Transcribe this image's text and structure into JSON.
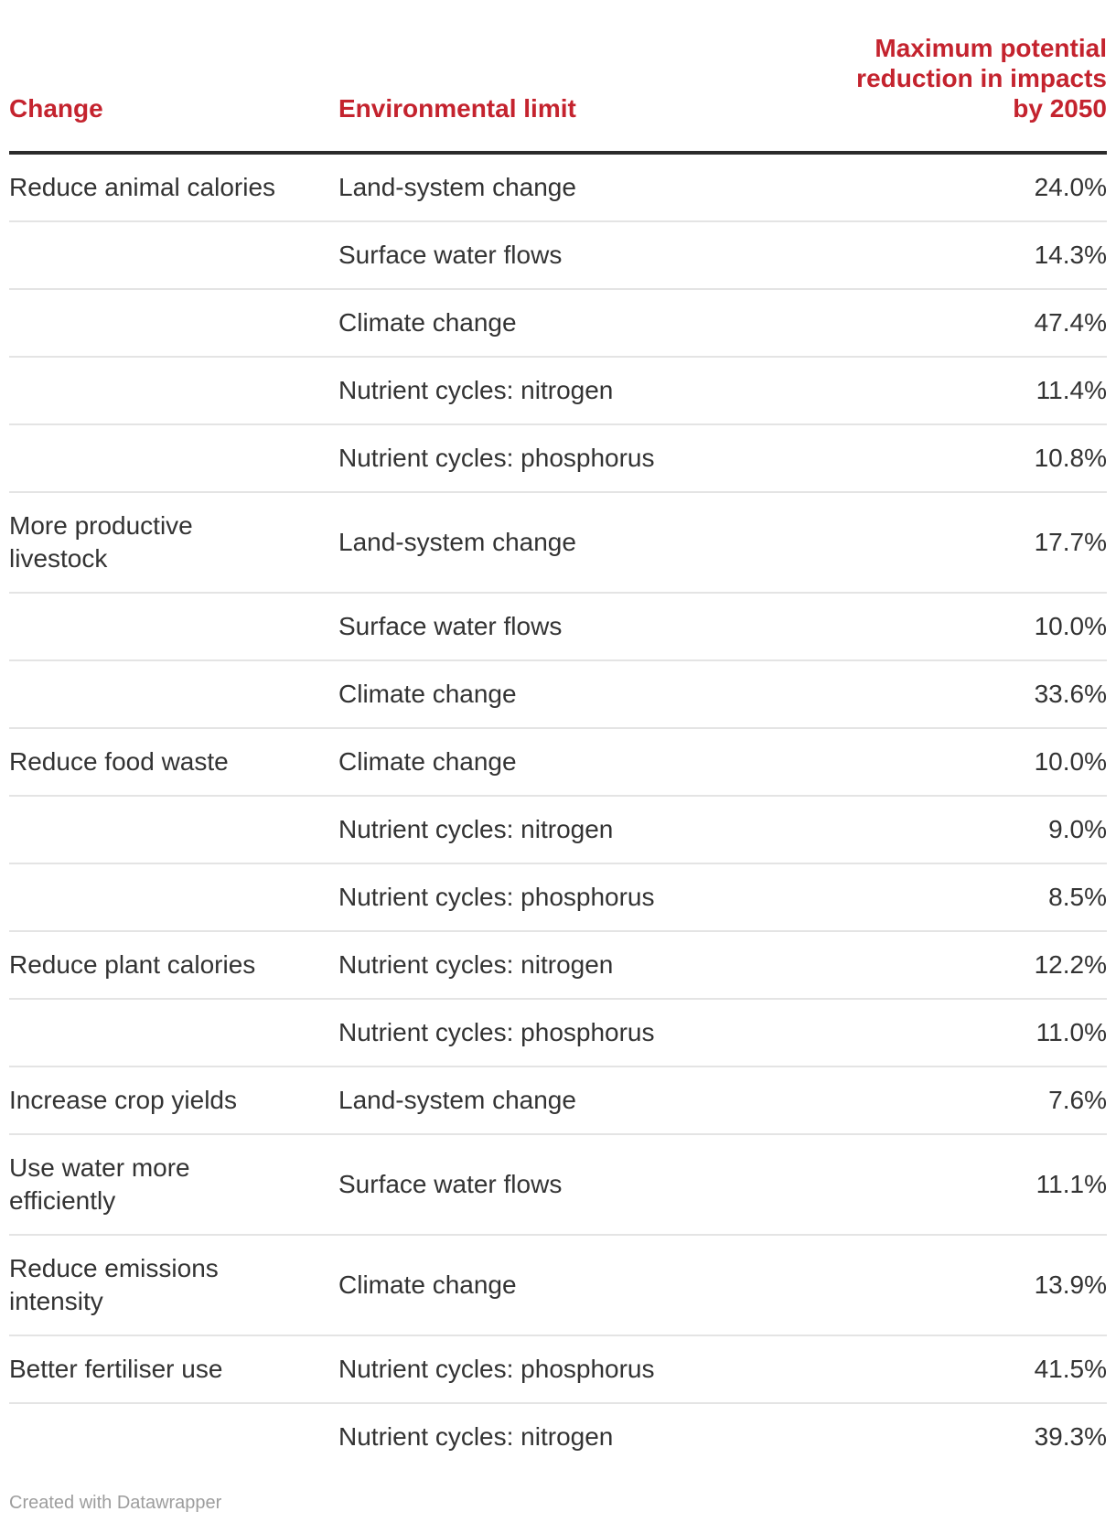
{
  "chart_data": {
    "type": "table",
    "columns": [
      "Change",
      "Environmental limit",
      "Maximum potential reduction in impacts by 2050"
    ],
    "groups": [
      {
        "change": "Reduce animal calories",
        "entries": [
          {
            "limit": "Land-system change",
            "value_pct": 24.0
          },
          {
            "limit": "Surface water flows",
            "value_pct": 14.3
          },
          {
            "limit": "Climate change",
            "value_pct": 47.4
          },
          {
            "limit": "Nutrient cycles: nitrogen",
            "value_pct": 11.4
          },
          {
            "limit": "Nutrient cycles: phosphorus",
            "value_pct": 10.8
          }
        ]
      },
      {
        "change": "More productive livestock",
        "entries": [
          {
            "limit": "Land-system change",
            "value_pct": 17.7
          },
          {
            "limit": "Surface water flows",
            "value_pct": 10.0
          },
          {
            "limit": "Climate change",
            "value_pct": 33.6
          }
        ]
      },
      {
        "change": "Reduce food waste",
        "entries": [
          {
            "limit": "Climate change",
            "value_pct": 10.0
          },
          {
            "limit": "Nutrient cycles: nitrogen",
            "value_pct": 9.0
          },
          {
            "limit": "Nutrient cycles: phosphorus",
            "value_pct": 8.5
          }
        ]
      },
      {
        "change": "Reduce plant calories",
        "entries": [
          {
            "limit": "Nutrient cycles: nitrogen",
            "value_pct": 12.2
          },
          {
            "limit": "Nutrient cycles: phosphorus",
            "value_pct": 11.0
          }
        ]
      },
      {
        "change": "Increase crop yields",
        "entries": [
          {
            "limit": "Land-system change",
            "value_pct": 7.6
          }
        ]
      },
      {
        "change": "Use water more efficiently",
        "entries": [
          {
            "limit": "Surface water flows",
            "value_pct": 11.1
          }
        ]
      },
      {
        "change": "Reduce emissions intensity",
        "entries": [
          {
            "limit": "Climate change",
            "value_pct": 13.9
          }
        ]
      },
      {
        "change": "Better fertiliser use",
        "entries": [
          {
            "limit": "Nutrient cycles: phosphorus",
            "value_pct": 41.5
          },
          {
            "limit": "Nutrient cycles: nitrogen",
            "value_pct": 39.3
          }
        ]
      }
    ],
    "legend_position": "none",
    "grid": "horizontal-row-separators"
  },
  "header": {
    "change": "Change",
    "limit": "Environmental limit",
    "value": "Maximum potential\nreduction in impacts\nby 2050"
  },
  "rows": [
    {
      "change": "Reduce animal calories",
      "limit": "Land-system change",
      "value": "24.0%"
    },
    {
      "change": "",
      "limit": "Surface water flows",
      "value": "14.3%"
    },
    {
      "change": "",
      "limit": "Climate change",
      "value": "47.4%"
    },
    {
      "change": "",
      "limit": "Nutrient cycles: nitrogen",
      "value": "11.4%"
    },
    {
      "change": "",
      "limit": "Nutrient cycles: phosphorus",
      "value": "10.8%"
    },
    {
      "change": "More productive\nlivestock",
      "limit": "Land-system change",
      "value": "17.7%"
    },
    {
      "change": "",
      "limit": "Surface water flows",
      "value": "10.0%"
    },
    {
      "change": "",
      "limit": "Climate change",
      "value": "33.6%"
    },
    {
      "change": "Reduce food waste",
      "limit": "Climate change",
      "value": "10.0%"
    },
    {
      "change": "",
      "limit": "Nutrient cycles: nitrogen",
      "value": "9.0%"
    },
    {
      "change": "",
      "limit": "Nutrient cycles: phosphorus",
      "value": "8.5%"
    },
    {
      "change": "Reduce plant calories",
      "limit": "Nutrient cycles: nitrogen",
      "value": "12.2%"
    },
    {
      "change": "",
      "limit": "Nutrient cycles: phosphorus",
      "value": "11.0%"
    },
    {
      "change": "Increase crop yields",
      "limit": "Land-system change",
      "value": "7.6%"
    },
    {
      "change": "Use water more\nefficiently",
      "limit": "Surface water flows",
      "value": "11.1%"
    },
    {
      "change": "Reduce emissions\nintensity",
      "limit": "Climate change",
      "value": "13.9%"
    },
    {
      "change": "Better fertiliser use",
      "limit": "Nutrient cycles: phosphorus",
      "value": "41.5%"
    },
    {
      "change": "",
      "limit": "Nutrient cycles: nitrogen",
      "value": "39.3%"
    }
  ],
  "footer": {
    "credit": "Created with Datawrapper"
  },
  "colors": {
    "header_red": "#c4232e",
    "body_text": "#333333",
    "header_rule": "#2b2b2b",
    "row_separator": "#e4e4e4",
    "credit_gray": "#9d9d9d",
    "background": "#ffffff"
  }
}
